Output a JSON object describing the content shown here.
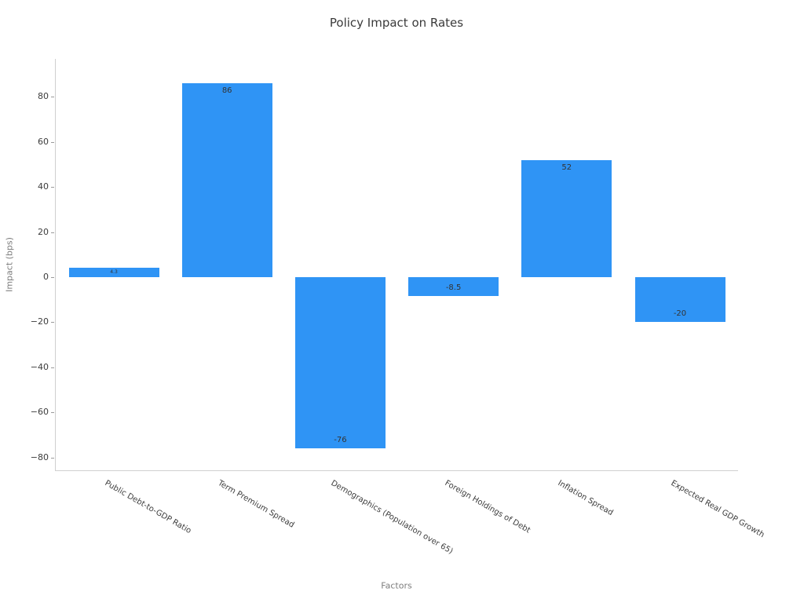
{
  "chart_data": {
    "type": "bar",
    "title": "Policy Impact on Rates",
    "xlabel": "Factors",
    "ylabel": "Impact (bps)",
    "categories": [
      "Public Debt-to-GDP Ratio",
      "Term Premium Spread",
      "Demographics (Population over 65)",
      "Foreign Holdings of Debt",
      "Inflation Spread",
      "Expected Real GDP Growth"
    ],
    "values": [
      4.3,
      86,
      -76,
      -8.5,
      52,
      -20
    ],
    "bar_labels": [
      "4.3",
      "86",
      "-76",
      "-8.5",
      "52",
      "-20"
    ],
    "yticks": [
      80,
      60,
      40,
      20,
      0,
      -20,
      -40,
      -60,
      -80
    ],
    "ylim": [
      -86,
      97
    ],
    "bar_color": "#2F94F5",
    "grid": false,
    "legend_position": "none"
  }
}
